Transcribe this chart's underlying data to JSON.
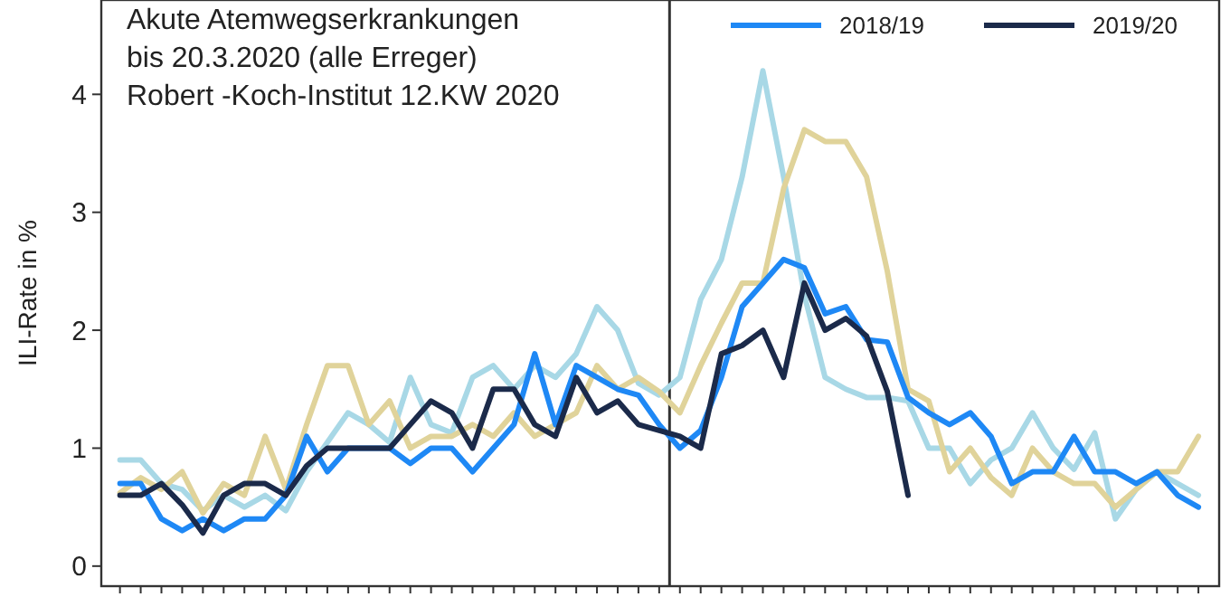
{
  "chart_data": {
    "type": "line",
    "title": "Akute Atemwegserkrankungen\nbis 20.3.2020 (alle Erreger)\nRobert -Koch-Institut 12.KW 2020",
    "ylabel": "ILI-Rate in %",
    "categories": [
      null,
      null,
      null,
      null,
      null,
      null,
      null,
      null,
      null,
      null,
      null,
      null,
      null,
      null,
      null,
      null,
      null,
      null,
      null,
      null,
      null,
      null,
      null,
      null,
      null,
      null,
      null,
      null,
      null,
      null,
      null,
      null,
      null,
      null,
      null,
      null,
      null,
      null,
      null,
      null,
      null,
      null,
      null,
      null,
      null,
      null,
      null,
      null,
      null,
      null,
      null,
      null,
      null
    ],
    "ylim": [
      -0.17,
      4.8
    ],
    "yticks": [
      0,
      1,
      2,
      3,
      4
    ],
    "tick_labels": "y",
    "legend": "top right",
    "line_style": "solid",
    "marker": "none",
    "series": [
      {
        "color": "#a8d8e6",
        "values": [
          0.9,
          0.9,
          0.7,
          0.65,
          0.47,
          0.6,
          0.5,
          0.6,
          0.47,
          0.8,
          1.05,
          1.3,
          1.2,
          1.05,
          1.6,
          1.2,
          1.13,
          1.6,
          1.7,
          1.5,
          1.7,
          1.6,
          1.8,
          2.2,
          2.0,
          1.55,
          1.45,
          1.6,
          2.26,
          2.6,
          3.3,
          4.2,
          3.3,
          2.3,
          1.6,
          1.5,
          1.43,
          1.43,
          1.4,
          1.0,
          1.0,
          0.7,
          0.9,
          1.0,
          1.3,
          1.0,
          0.82,
          1.13,
          0.4,
          0.65,
          0.8,
          0.7,
          0.6
        ]
      },
      {
        "color": "#e0d39a",
        "values": [
          0.62,
          0.75,
          0.65,
          0.8,
          0.45,
          0.7,
          0.6,
          1.1,
          0.65,
          1.2,
          1.7,
          1.7,
          1.2,
          1.4,
          1.0,
          1.1,
          1.1,
          1.2,
          1.1,
          1.3,
          1.1,
          1.2,
          1.3,
          1.7,
          1.5,
          1.6,
          1.48,
          1.3,
          1.7,
          2.06,
          2.4,
          2.4,
          3.2,
          3.7,
          3.6,
          3.6,
          3.3,
          2.5,
          1.5,
          1.4,
          0.8,
          1.0,
          0.75,
          0.6,
          1.0,
          0.8,
          0.7,
          0.7,
          0.5,
          0.65,
          0.8,
          0.8,
          1.1
        ]
      },
      {
        "name": "2018/19",
        "color": "#1e88f5",
        "values": [
          0.7,
          0.7,
          0.4,
          0.3,
          0.4,
          0.3,
          0.4,
          0.4,
          0.6,
          1.1,
          0.8,
          1.0,
          1.0,
          1.0,
          0.87,
          1.0,
          1.0,
          0.8,
          1.0,
          1.2,
          1.8,
          1.2,
          1.7,
          1.6,
          1.5,
          1.45,
          1.2,
          1.0,
          1.15,
          1.6,
          2.2,
          2.4,
          2.6,
          2.53,
          2.14,
          2.2,
          1.92,
          1.9,
          1.43,
          1.3,
          1.2,
          1.3,
          1.1,
          0.7,
          0.8,
          0.8,
          1.1,
          0.8,
          0.8,
          0.7,
          0.8,
          0.6,
          0.5
        ]
      },
      {
        "name": "2019/20",
        "color": "#1b2a4a",
        "values": [
          0.6,
          0.6,
          0.7,
          0.52,
          0.28,
          0.6,
          0.7,
          0.7,
          0.6,
          0.85,
          1.0,
          1.0,
          1.0,
          1.0,
          1.2,
          1.4,
          1.3,
          1.0,
          1.5,
          1.5,
          1.2,
          1.1,
          1.6,
          1.3,
          1.4,
          1.2,
          1.15,
          1.1,
          1.0,
          1.8,
          1.87,
          2.0,
          1.6,
          2.4,
          2.0,
          2.1,
          1.95,
          1.48,
          0.6,
          null,
          null,
          null,
          null,
          null,
          null,
          null,
          null,
          null,
          null,
          null,
          null,
          null,
          null
        ]
      }
    ]
  }
}
